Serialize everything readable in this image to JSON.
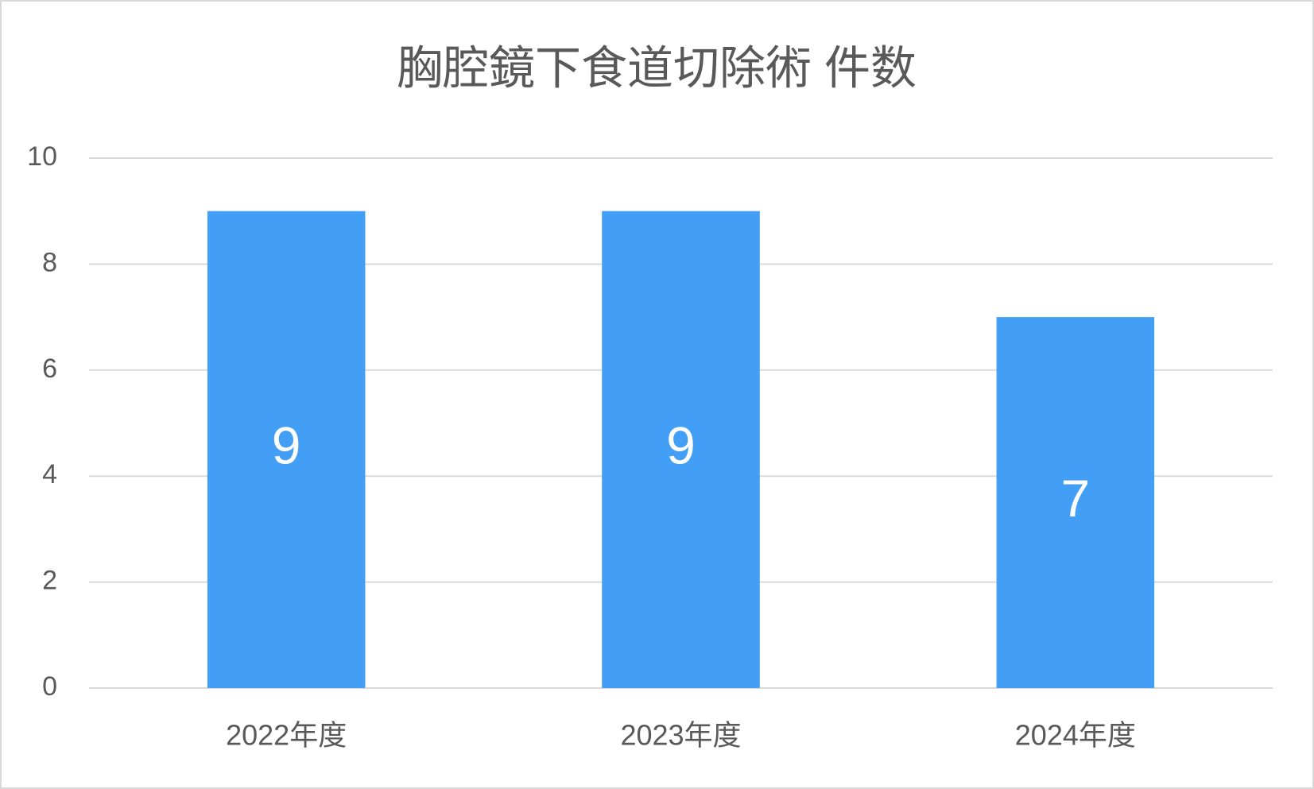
{
  "chart_data": {
    "type": "bar",
    "title": "胸腔鏡下食道切除術 件数",
    "categories": [
      "2022年度",
      "2023年度",
      "2024年度"
    ],
    "values": [
      9,
      9,
      7
    ],
    "color": "#439ff5",
    "ylim": [
      0,
      10
    ],
    "yticks": [
      0,
      2,
      4,
      6,
      8,
      10
    ],
    "grid": true,
    "data_labels": true
  }
}
